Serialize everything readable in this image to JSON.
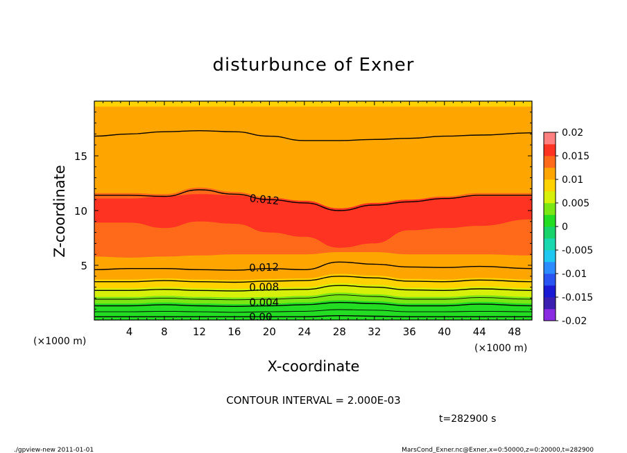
{
  "chart_data": {
    "type": "heatmap",
    "title": "disturbunce of Exner",
    "xlabel": "X-coordinate",
    "ylabel": "Z-coordinate",
    "x_unit": "(×1000 m)",
    "y_unit": "(×1000 m)",
    "xlim": [
      0,
      50
    ],
    "ylim": [
      0,
      20
    ],
    "x_ticks": [
      4,
      8,
      12,
      16,
      20,
      24,
      28,
      32,
      36,
      40,
      44,
      48
    ],
    "y_ticks": [
      5,
      10,
      15
    ],
    "colorbar": {
      "ticks": [
        "0.02",
        "0.015",
        "0.01",
        "0.005",
        "0",
        "-0.005",
        "-0.01",
        "-0.015",
        "-0.02"
      ],
      "range": [
        -0.02,
        0.02
      ]
    },
    "color_bands": [
      {
        "low": -0.02,
        "high": -0.0175,
        "color": "#8a2be2"
      },
      {
        "low": -0.0175,
        "high": -0.015,
        "color": "#3b1fb0"
      },
      {
        "low": -0.015,
        "high": -0.0125,
        "color": "#1a1ad4"
      },
      {
        "low": -0.0125,
        "high": -0.01,
        "color": "#2a54f2"
      },
      {
        "low": -0.01,
        "high": -0.0075,
        "color": "#2c8cff"
      },
      {
        "low": -0.0075,
        "high": -0.005,
        "color": "#1ec8f0"
      },
      {
        "low": -0.005,
        "high": -0.0025,
        "color": "#19d8b0"
      },
      {
        "low": -0.0025,
        "high": 0.0,
        "color": "#18d26a"
      },
      {
        "low": 0.0,
        "high": 0.0025,
        "color": "#22dd22"
      },
      {
        "low": 0.0025,
        "high": 0.005,
        "color": "#7ae614"
      },
      {
        "low": 0.005,
        "high": 0.0075,
        "color": "#d6f00a"
      },
      {
        "low": 0.0075,
        "high": 0.01,
        "color": "#ffd200"
      },
      {
        "low": 0.01,
        "high": 0.0125,
        "color": "#ffa500"
      },
      {
        "low": 0.0125,
        "high": 0.015,
        "color": "#ff6a1a"
      },
      {
        "low": 0.015,
        "high": 0.0175,
        "color": "#ff3322"
      },
      {
        "low": 0.0175,
        "high": 0.02,
        "color": "#ff8080"
      }
    ],
    "field_layers": [
      {
        "value": 0.0005,
        "z": [
          0.55,
          0.55,
          0.55,
          0.55,
          0.55,
          0.55,
          0.55,
          0.7,
          0.65,
          0.55,
          0.55,
          0.55,
          0.55
        ]
      },
      {
        "value": 0.002,
        "z": [
          0.95,
          0.95,
          1.0,
          0.95,
          0.95,
          0.95,
          1.0,
          1.2,
          1.1,
          0.95,
          0.95,
          1.0,
          0.95
        ]
      },
      {
        "value": 0.004,
        "z": [
          1.5,
          1.5,
          1.6,
          1.5,
          1.45,
          1.5,
          1.6,
          1.8,
          1.7,
          1.5,
          1.5,
          1.65,
          1.5
        ]
      },
      {
        "value": 0.006,
        "z": [
          2.1,
          2.1,
          2.2,
          2.1,
          2.05,
          2.1,
          2.2,
          2.5,
          2.35,
          2.1,
          2.1,
          2.25,
          2.1
        ]
      },
      {
        "value": 0.008,
        "z": [
          2.9,
          2.9,
          3.0,
          2.9,
          2.85,
          2.95,
          3.0,
          3.35,
          3.2,
          2.95,
          2.9,
          3.05,
          2.9
        ]
      },
      {
        "value": 0.01,
        "z": [
          3.7,
          3.7,
          3.8,
          3.7,
          3.65,
          3.75,
          3.8,
          4.2,
          4.05,
          3.75,
          3.7,
          3.85,
          3.7
        ]
      },
      {
        "value": 0.012,
        "z": [
          4.6,
          4.7,
          4.7,
          4.6,
          4.55,
          4.7,
          4.6,
          5.3,
          5.1,
          4.85,
          4.8,
          4.9,
          4.7
        ]
      },
      {
        "value": 0.014,
        "z": [
          5.8,
          5.7,
          5.8,
          5.9,
          6.0,
          6.0,
          6.0,
          6.2,
          6.2,
          6.0,
          6.0,
          6.0,
          5.9
        ]
      },
      {
        "value": 0.015,
        "z": [
          8.9,
          8.9,
          8.4,
          9.0,
          8.8,
          8.0,
          7.6,
          6.6,
          7.0,
          8.2,
          8.4,
          8.6,
          9.2
        ]
      },
      {
        "value": 0.014,
        "z": [
          11.1,
          11.1,
          11.3,
          11.5,
          11.4,
          11.1,
          10.9,
          10.4,
          10.8,
          11.0,
          11.2,
          11.3,
          11.3
        ]
      },
      {
        "value": 0.012,
        "z": [
          11.6,
          11.6,
          11.5,
          12.1,
          11.7,
          11.2,
          10.9,
          10.2,
          10.7,
          11.0,
          11.3,
          11.6,
          11.6
        ]
      },
      {
        "value": 0.012,
        "z": [
          14.2,
          14.2,
          14.3,
          14.4,
          14.3,
          14.1,
          13.9,
          13.7,
          13.9,
          14.0,
          14.2,
          14.3,
          14.3
        ]
      },
      {
        "value": 0.01,
        "z": [
          16.9,
          17.1,
          17.3,
          17.4,
          17.3,
          16.9,
          16.5,
          16.5,
          16.6,
          16.7,
          16.9,
          17.0,
          17.2
        ]
      },
      {
        "value": 0.01,
        "z": [
          19.5,
          19.5,
          19.5,
          19.6,
          19.5,
          19.4,
          19.3,
          19.3,
          19.3,
          19.4,
          19.4,
          19.5,
          19.5
        ]
      },
      {
        "value": 0.008,
        "z": [
          20,
          20,
          20,
          20,
          20,
          20,
          20,
          20,
          20,
          20,
          20,
          20,
          20
        ]
      }
    ],
    "field_x": [
      0,
      4,
      8,
      12,
      16,
      20,
      24,
      28,
      32,
      36,
      40,
      44,
      50
    ],
    "contours": [
      {
        "value": 0.0,
        "z": [
          0.3,
          0.3,
          0.3,
          0.3,
          0.3,
          0.3,
          0.3,
          0.4,
          0.35,
          0.3,
          0.3,
          0.3,
          0.3
        ]
      },
      {
        "value": 0.002,
        "z": [
          0.75,
          0.75,
          0.8,
          0.75,
          0.7,
          0.75,
          0.8,
          0.95,
          0.9,
          0.75,
          0.75,
          0.8,
          0.75
        ]
      },
      {
        "value": 0.004,
        "z": [
          1.3,
          1.3,
          1.4,
          1.3,
          1.25,
          1.3,
          1.4,
          1.6,
          1.5,
          1.3,
          1.3,
          1.45,
          1.3
        ]
      },
      {
        "value": 0.006,
        "z": [
          1.9,
          1.9,
          2.0,
          1.9,
          1.85,
          1.9,
          2.0,
          2.3,
          2.15,
          1.9,
          1.9,
          2.05,
          1.9
        ]
      },
      {
        "value": 0.008,
        "z": [
          2.7,
          2.7,
          2.8,
          2.7,
          2.65,
          2.75,
          2.8,
          3.15,
          3.0,
          2.75,
          2.7,
          2.85,
          2.7
        ]
      },
      {
        "value": 0.01,
        "z": [
          3.5,
          3.5,
          3.6,
          3.5,
          3.45,
          3.55,
          3.6,
          4.0,
          3.85,
          3.55,
          3.5,
          3.65,
          3.5
        ]
      },
      {
        "value": 0.012,
        "z": [
          4.6,
          4.7,
          4.7,
          4.6,
          4.55,
          4.7,
          4.6,
          5.3,
          5.1,
          4.85,
          4.8,
          4.9,
          4.7
        ]
      },
      {
        "value": 0.012,
        "z": [
          11.4,
          11.4,
          11.3,
          11.9,
          11.5,
          11.0,
          10.7,
          10.0,
          10.5,
          10.8,
          11.1,
          11.4,
          11.4
        ]
      },
      {
        "value": 0.01,
        "z": [
          16.8,
          17.0,
          17.2,
          17.3,
          17.2,
          16.8,
          16.4,
          16.4,
          16.5,
          16.6,
          16.8,
          16.9,
          17.1
        ]
      }
    ],
    "contour_labels": [
      {
        "text": "0.012",
        "x": 19.4,
        "z": 11.0,
        "angle": 6
      },
      {
        "text": "0.012",
        "x": 19.4,
        "z": 4.8,
        "angle": -2
      },
      {
        "text": "0.008",
        "x": 19.4,
        "z": 3.0,
        "angle": -1
      },
      {
        "text": "0.004",
        "x": 19.4,
        "z": 1.6,
        "angle": 0
      },
      {
        "text": "0.00",
        "x": 19.0,
        "z": 0.3,
        "angle": 0
      }
    ],
    "annotations": {
      "contour_interval": "CONTOUR INTERVAL = 2.000E-03",
      "time": "t=282900 s"
    }
  },
  "footer": {
    "left": "./gpview-new  2011-01-01",
    "right": "MarsCond_Exner.nc@Exner,x=0:50000,z=0:20000,t=282900"
  }
}
